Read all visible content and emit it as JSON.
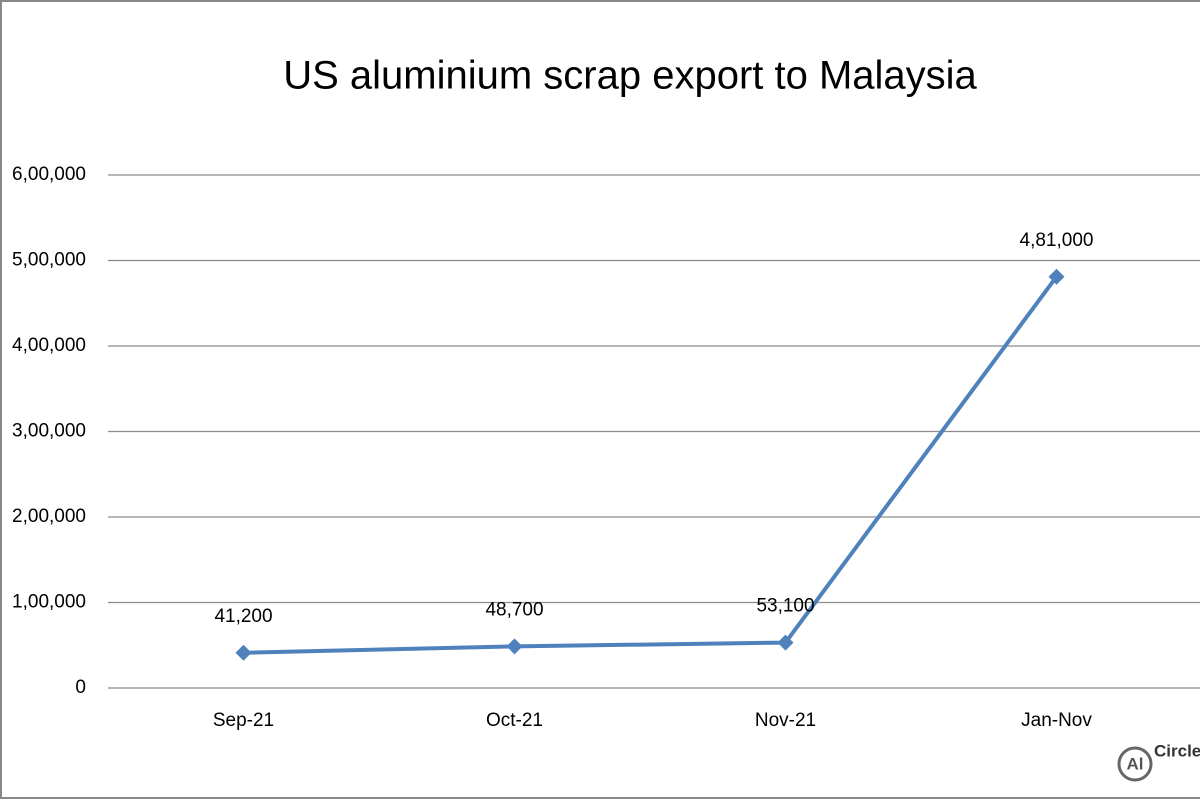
{
  "chart_data": {
    "type": "line",
    "title": "US aluminium scrap export to Malaysia",
    "categories": [
      "Sep-21",
      "Oct-21",
      "Nov-21",
      "Jan-Nov"
    ],
    "series": [
      {
        "color": "#4f81bd",
        "values": [
          41200,
          48700,
          53100,
          481000
        ],
        "value_labels": [
          "41,200",
          "48,700",
          "53,100",
          "4,81,000"
        ]
      }
    ],
    "ylim": [
      0,
      600000
    ],
    "yticks": [
      0,
      {
        "value": 100000,
        "label": "1,00,000"
      },
      {
        "value": 200000,
        "label": "2,00,000"
      },
      {
        "value": 300000,
        "label": "3,00,000"
      },
      {
        "value": 400000,
        "label": "4,00,000"
      },
      {
        "value": 500000,
        "label": "5,00,000"
      },
      {
        "value": 600000,
        "label": "6,00,000"
      }
    ],
    "grid": true
  },
  "logo": {
    "mark": "Al",
    "word": "Circle"
  }
}
